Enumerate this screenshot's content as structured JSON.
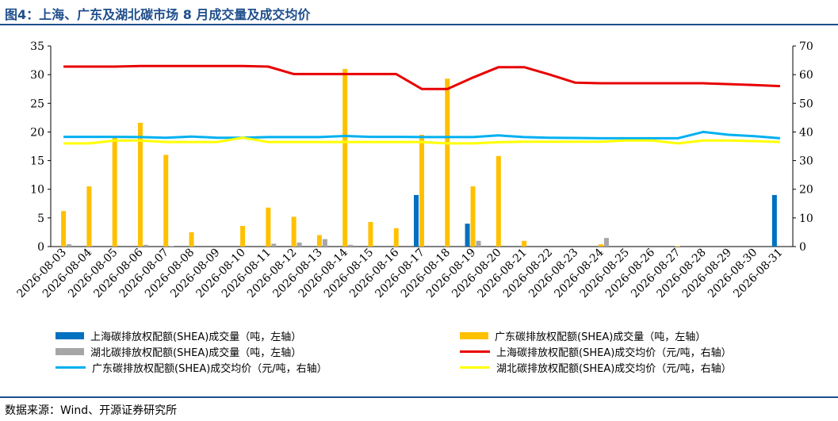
{
  "header": {
    "title": "图4：上海、广东及湖北碳市场 8 月成交量及成交均价"
  },
  "footer": {
    "source": "数据来源：Wind、开源证券研究所"
  },
  "colors": {
    "shanghai_bar": "#0070C0",
    "guangdong_bar": "#FFC000",
    "hubei_bar": "#A6A6A6",
    "shanghai_line": "#E80000",
    "guangdong_line": "#00B0F0",
    "hubei_line": "#FFFF00",
    "header_rule": "#1f4e8c"
  },
  "chart_data": {
    "type": "bar",
    "categories": [
      "2026-08-03",
      "2026-08-04",
      "2026-08-05",
      "2026-08-06",
      "2026-08-07",
      "2026-08-08",
      "2026-08-09",
      "2026-08-10",
      "2026-08-11",
      "2026-08-12",
      "2026-08-13",
      "2026-08-14",
      "2026-08-15",
      "2026-08-16",
      "2026-08-17",
      "2026-08-18",
      "2026-08-19",
      "2026-08-20",
      "2026-08-21",
      "2026-08-22",
      "2026-08-23",
      "2026-08-24",
      "2026-08-25",
      "2026-08-26",
      "2026-08-27",
      "2026-08-28",
      "2026-08-29",
      "2026-08-30",
      "2026-08-31"
    ],
    "left_axis": {
      "ylim": [
        0,
        35
      ],
      "ticks": [
        "0",
        "5",
        "10",
        "15",
        "20",
        "25",
        "30",
        "35"
      ]
    },
    "right_axis": {
      "ylim": [
        0,
        70
      ],
      "ticks": [
        "0",
        "10",
        "20",
        "30",
        "40",
        "50",
        "60",
        "70"
      ]
    },
    "bar_series": [
      {
        "name": "上海碳排放权配额(SHEA)成交量（吨，左轴）",
        "color": "#0070C0",
        "values": [
          0,
          0,
          0,
          0,
          0,
          0,
          0,
          0,
          0,
          0,
          0,
          0,
          0,
          0,
          9,
          0,
          4,
          0,
          0,
          0,
          0,
          0,
          0,
          0,
          0,
          0,
          0,
          0,
          9
        ]
      },
      {
        "name": "广东碳排放权配额(SHEA)成交量（吨，左轴）",
        "color": "#FFC000",
        "values": [
          6.2,
          10.5,
          19,
          21.6,
          16,
          2.5,
          0,
          3.6,
          6.8,
          5.2,
          2,
          31,
          4.3,
          3.2,
          19.5,
          29.3,
          10.5,
          15.8,
          1,
          0,
          0,
          0.4,
          0,
          0,
          0.1,
          0,
          0,
          0,
          0
        ]
      },
      {
        "name": "湖北碳排放权配额(SHEA)成交量（吨，左轴）",
        "color": "#A6A6A6",
        "values": [
          0.4,
          0,
          0,
          0.3,
          0.1,
          0,
          0,
          0,
          0.5,
          0.7,
          1.3,
          0.3,
          0,
          0,
          0,
          0,
          1.0,
          0,
          0,
          0,
          0,
          1.5,
          0,
          0,
          0,
          0,
          0,
          0,
          0
        ]
      }
    ],
    "line_series": [
      {
        "name": "上海碳排放权配额(SHEA)成交均价（元/吨，右轴）",
        "color": "#E80000",
        "values": [
          62.8,
          62.8,
          62.8,
          63,
          63,
          63,
          63,
          63,
          62.8,
          60.2,
          60.2,
          60.2,
          60.2,
          60.2,
          55,
          55,
          59,
          62.6,
          62.6,
          60,
          57.2,
          57,
          57,
          57,
          57,
          57,
          56.7,
          56.4,
          56
        ]
      },
      {
        "name": "广东碳排放权配额(SHEA)成交均价（元/吨，右轴）",
        "color": "#00B0F0",
        "values": [
          38.3,
          38.3,
          38.3,
          38.2,
          38,
          38.4,
          38,
          38,
          38.2,
          38.2,
          38.2,
          38.6,
          38.3,
          38.3,
          38.2,
          38.2,
          38.2,
          38.8,
          38.2,
          38,
          37.9,
          37.8,
          37.8,
          37.8,
          37.8,
          40,
          39,
          38.5,
          37.8
        ]
      },
      {
        "name": "湖北碳排放权配额(SHEA)成交均价（元/吨，右轴）",
        "color": "#FFFF00",
        "values": [
          36,
          36,
          37,
          37,
          36.5,
          36.5,
          36.5,
          38,
          36.5,
          36.5,
          36.5,
          36.5,
          36.5,
          36.5,
          36.5,
          36,
          36,
          36.4,
          36.6,
          36.6,
          36.6,
          36.6,
          37,
          37,
          36,
          37,
          37,
          36.8,
          36.5
        ]
      }
    ],
    "grid": false,
    "legend_position": "bottom"
  }
}
